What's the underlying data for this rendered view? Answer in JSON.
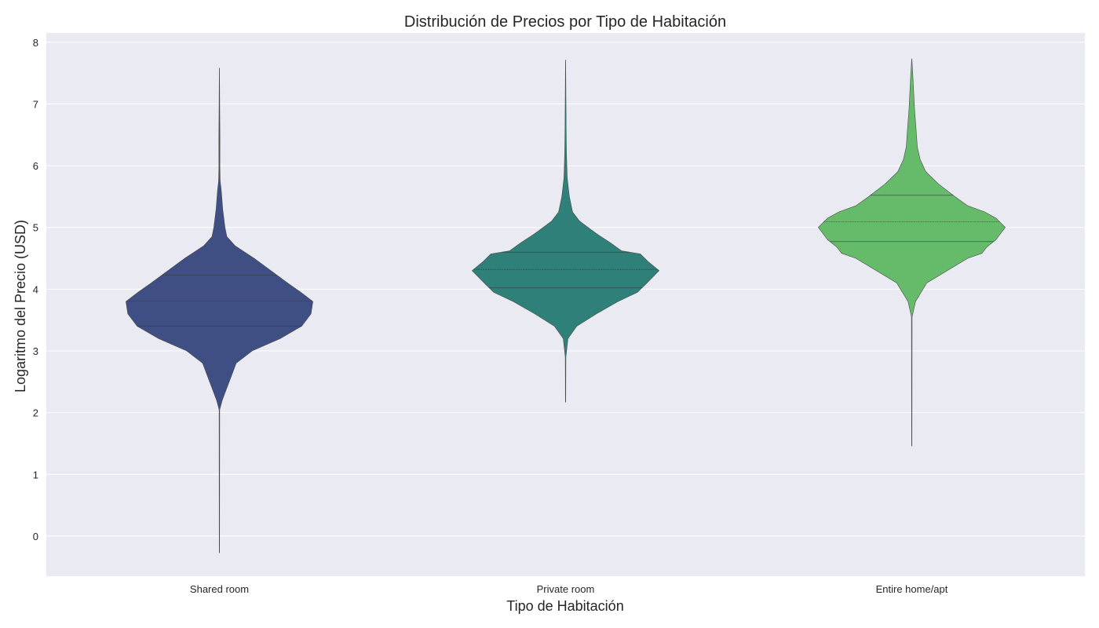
{
  "chart_data": {
    "type": "violin",
    "title": "Distribución de Precios por Tipo de Habitación",
    "xlabel": "Tipo de Habitación",
    "ylabel": "Logaritmo del Precio (USD)",
    "ylim": [
      -0.65,
      8.15
    ],
    "yticks": [
      "0",
      "1",
      "2",
      "3",
      "4",
      "5",
      "6",
      "7",
      "8"
    ],
    "grid": true,
    "style": "seaborn-darkgrid",
    "categories": [
      "Shared room",
      "Private room",
      "Entire home/apt"
    ],
    "series": [
      {
        "category": "Shared room",
        "color": "#3F4F84",
        "min": -0.27,
        "max": 7.58,
        "quartiles": [
          3.4,
          3.81,
          4.23
        ],
        "max_half_width": 0.27,
        "density_profile": [
          [
            -0.27,
            0.002
          ],
          [
            2.05,
            0.003
          ],
          [
            2.2,
            0.03
          ],
          [
            2.4,
            0.08
          ],
          [
            2.6,
            0.13
          ],
          [
            2.8,
            0.18
          ],
          [
            3.0,
            0.35
          ],
          [
            3.2,
            0.65
          ],
          [
            3.4,
            0.88
          ],
          [
            3.6,
            0.98
          ],
          [
            3.8,
            1.0
          ],
          [
            3.95,
            0.87
          ],
          [
            4.1,
            0.73
          ],
          [
            4.3,
            0.55
          ],
          [
            4.5,
            0.37
          ],
          [
            4.7,
            0.17
          ],
          [
            4.85,
            0.08
          ],
          [
            5.0,
            0.06
          ],
          [
            5.3,
            0.035
          ],
          [
            5.6,
            0.02
          ],
          [
            5.75,
            0.008
          ],
          [
            6.0,
            0.005
          ],
          [
            6.4,
            0.006
          ],
          [
            6.8,
            0.004
          ],
          [
            7.58,
            0.001
          ]
        ]
      },
      {
        "category": "Private room",
        "color": "#2E8079",
        "min": 2.17,
        "max": 7.71,
        "quartiles": [
          4.02,
          4.32,
          4.6
        ],
        "max_half_width": 0.27,
        "density_profile": [
          [
            2.17,
            0.002
          ],
          [
            2.9,
            0.003
          ],
          [
            3.2,
            0.025
          ],
          [
            3.4,
            0.12
          ],
          [
            3.6,
            0.33
          ],
          [
            3.8,
            0.56
          ],
          [
            3.95,
            0.77
          ],
          [
            4.1,
            0.87
          ],
          [
            4.3,
            1.0
          ],
          [
            4.45,
            0.88
          ],
          [
            4.57,
            0.8
          ],
          [
            4.62,
            0.6
          ],
          [
            4.75,
            0.48
          ],
          [
            4.9,
            0.33
          ],
          [
            5.0,
            0.24
          ],
          [
            5.1,
            0.15
          ],
          [
            5.25,
            0.075
          ],
          [
            5.5,
            0.04
          ],
          [
            5.8,
            0.018
          ],
          [
            6.2,
            0.009
          ],
          [
            6.6,
            0.006
          ],
          [
            7.0,
            0.004
          ],
          [
            7.71,
            0.001
          ]
        ]
      },
      {
        "category": "Entire home/apt",
        "color": "#66BB6A",
        "min": 1.46,
        "max": 7.73,
        "quartiles": [
          4.77,
          5.09,
          5.52
        ],
        "max_half_width": 0.27,
        "density_profile": [
          [
            1.46,
            0.002
          ],
          [
            3.55,
            0.003
          ],
          [
            3.8,
            0.04
          ],
          [
            4.1,
            0.16
          ],
          [
            4.3,
            0.38
          ],
          [
            4.5,
            0.6
          ],
          [
            4.58,
            0.75
          ],
          [
            4.68,
            0.8
          ],
          [
            4.8,
            0.9
          ],
          [
            5.0,
            1.0
          ],
          [
            5.15,
            0.9
          ],
          [
            5.25,
            0.78
          ],
          [
            5.35,
            0.6
          ],
          [
            5.5,
            0.46
          ],
          [
            5.7,
            0.29
          ],
          [
            5.9,
            0.15
          ],
          [
            6.1,
            0.09
          ],
          [
            6.3,
            0.06
          ],
          [
            6.6,
            0.045
          ],
          [
            6.9,
            0.03
          ],
          [
            7.2,
            0.02
          ],
          [
            7.5,
            0.01
          ],
          [
            7.73,
            0.001
          ]
        ]
      }
    ]
  }
}
